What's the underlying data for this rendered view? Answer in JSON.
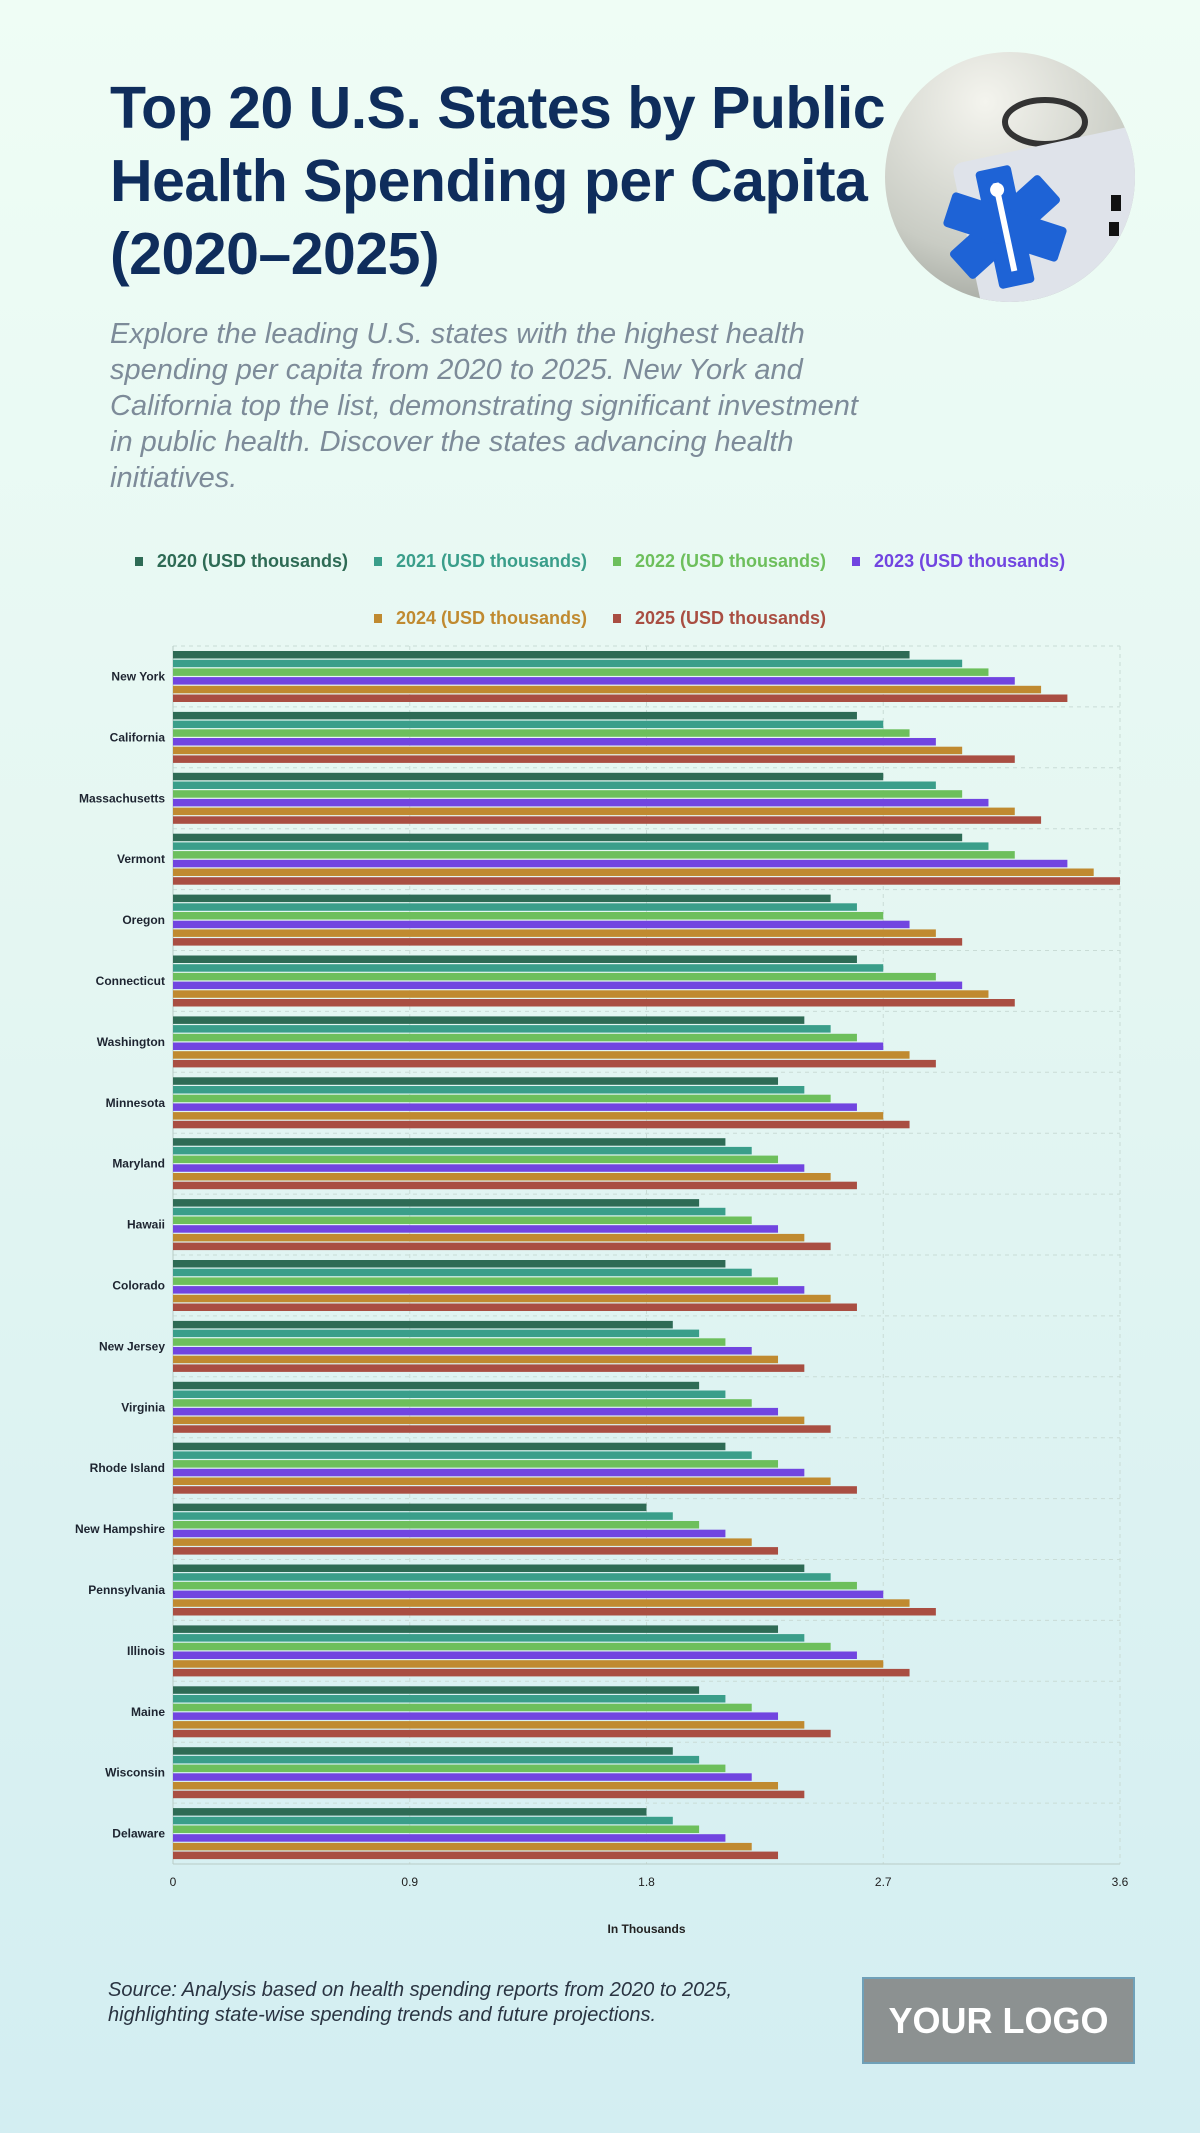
{
  "header": {
    "title": "Top 20 U.S. States by Public Health Spending per Capita (2020–2025)",
    "subtitle": "Explore the leading U.S. states with the highest health spending per capita from 2020 to 2025. New York and California top the list, demonstrating significant investment in public health. Discover the states advancing health initiatives.",
    "photo_icon": "medical-star-of-life-card"
  },
  "footer": {
    "source": "Source: Analysis based on health spending reports from 2020 to 2025, highlighting state-wise spending trends and future projections.",
    "logo": "YOUR LOGO"
  },
  "chart_data": {
    "type": "bar",
    "orientation": "horizontal",
    "xlabel": "In Thousands",
    "xlim": [
      0,
      3.6
    ],
    "xticks": [
      "0",
      "0.9",
      "1.8",
      "2.7",
      "3.6"
    ],
    "grid": true,
    "legend_position": "top",
    "categories": [
      "New York",
      "California",
      "Massachusetts",
      "Vermont",
      "Oregon",
      "Connecticut",
      "Washington",
      "Minnesota",
      "Maryland",
      "Hawaii",
      "Colorado",
      "New Jersey",
      "Virginia",
      "Rhode Island",
      "New Hampshire",
      "Pennsylvania",
      "Illinois",
      "Maine",
      "Wisconsin",
      "Delaware"
    ],
    "series": [
      {
        "name": "2020 (USD thousands)",
        "color": "#2e6b55",
        "values": [
          2.8,
          2.6,
          2.7,
          3.0,
          2.5,
          2.6,
          2.4,
          2.3,
          2.1,
          2.0,
          2.1,
          1.9,
          2.0,
          2.1,
          1.8,
          2.4,
          2.3,
          2.0,
          1.9,
          1.8
        ]
      },
      {
        "name": "2021 (USD thousands)",
        "color": "#3a9e8a",
        "values": [
          3.0,
          2.7,
          2.9,
          3.1,
          2.6,
          2.7,
          2.5,
          2.4,
          2.2,
          2.1,
          2.2,
          2.0,
          2.1,
          2.2,
          1.9,
          2.5,
          2.4,
          2.1,
          2.0,
          1.9
        ]
      },
      {
        "name": "2022 (USD thousands)",
        "color": "#6dbf5c",
        "values": [
          3.1,
          2.8,
          3.0,
          3.2,
          2.7,
          2.9,
          2.6,
          2.5,
          2.3,
          2.2,
          2.3,
          2.1,
          2.2,
          2.3,
          2.0,
          2.6,
          2.5,
          2.2,
          2.1,
          2.0
        ]
      },
      {
        "name": "2023 (USD thousands)",
        "color": "#7145e0",
        "values": [
          3.2,
          2.9,
          3.1,
          3.4,
          2.8,
          3.0,
          2.7,
          2.6,
          2.4,
          2.3,
          2.4,
          2.2,
          2.3,
          2.4,
          2.1,
          2.7,
          2.6,
          2.3,
          2.2,
          2.1
        ]
      },
      {
        "name": "2024 (USD thousands)",
        "color": "#c08a30",
        "values": [
          3.3,
          3.0,
          3.2,
          3.5,
          2.9,
          3.1,
          2.8,
          2.7,
          2.5,
          2.4,
          2.5,
          2.3,
          2.4,
          2.5,
          2.2,
          2.8,
          2.7,
          2.4,
          2.3,
          2.2
        ]
      },
      {
        "name": "2025 (USD thousands)",
        "color": "#a94e42",
        "values": [
          3.4,
          3.2,
          3.3,
          3.6,
          3.0,
          3.2,
          2.9,
          2.8,
          2.6,
          2.5,
          2.6,
          2.4,
          2.5,
          2.6,
          2.3,
          2.9,
          2.8,
          2.5,
          2.4,
          2.3
        ]
      }
    ]
  }
}
